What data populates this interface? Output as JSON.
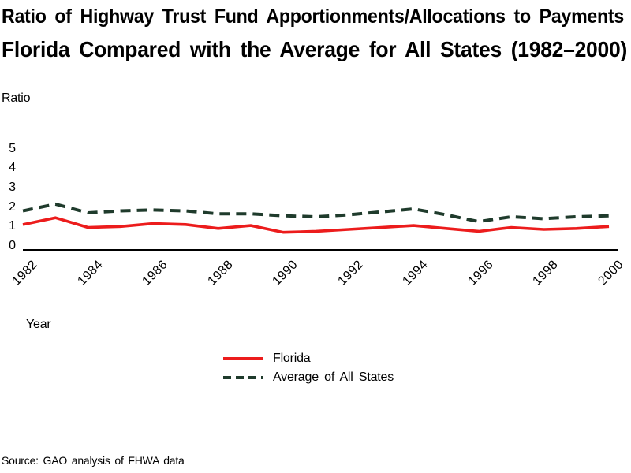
{
  "title": {
    "line1": "Ratio of Highway Trust Fund Apportionments/Allocations to Payments",
    "line2": "Florida Compared with the Average for All States (1982–2000)"
  },
  "axes": {
    "y_label": "Ratio",
    "x_label": "Year",
    "y_ticks": [
      5,
      4,
      3,
      2,
      1,
      0
    ],
    "x_tick_labels": [
      "1982",
      "1984",
      "1986",
      "1988",
      "1990",
      "1992",
      "1994",
      "1996",
      "1998",
      "2000"
    ]
  },
  "legend": [
    {
      "label": "Florida",
      "style": "solid",
      "color": "#ec1c1c"
    },
    {
      "label": "Average of All States",
      "style": "dashed",
      "color": "#1f3b2c"
    }
  ],
  "source": "Source: GAO analysis of FHWA data",
  "chart_data": {
    "type": "line",
    "title": "Ratio of Highway Trust Fund Apportionments/Allocations to Payments — Florida Compared with the Average for All States (1982–2000)",
    "xlabel": "Year",
    "ylabel": "Ratio",
    "ylim": [
      0,
      5
    ],
    "grid": false,
    "legend_position": "bottom-center",
    "x": [
      1982,
      1983,
      1984,
      1985,
      1986,
      1987,
      1988,
      1989,
      1990,
      1991,
      1992,
      1993,
      1994,
      1995,
      1996,
      1997,
      1998,
      1999,
      2000
    ],
    "series": [
      {
        "name": "Florida",
        "style": "solid",
        "color": "#ec1c1c",
        "values": [
          1.1,
          1.45,
          0.95,
          1.0,
          1.15,
          1.1,
          0.9,
          1.05,
          0.7,
          0.75,
          0.85,
          0.95,
          1.05,
          0.9,
          0.75,
          0.95,
          0.85,
          0.9,
          1.0
        ]
      },
      {
        "name": "Average of All States",
        "style": "dashed",
        "color": "#1f3b2c",
        "values": [
          1.8,
          2.15,
          1.7,
          1.8,
          1.85,
          1.8,
          1.65,
          1.65,
          1.55,
          1.5,
          1.6,
          1.75,
          1.9,
          1.6,
          1.25,
          1.5,
          1.4,
          1.5,
          1.55
        ]
      }
    ]
  }
}
